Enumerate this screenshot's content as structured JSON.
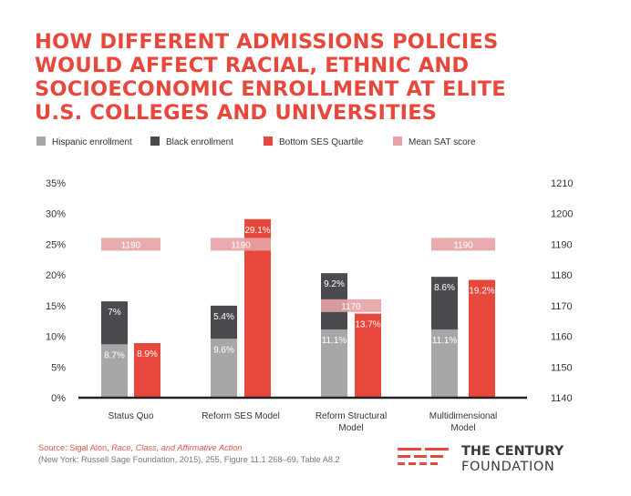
{
  "title_lines": [
    "HOW DIFFERENT ADMISSIONS POLICIES",
    "WOULD AFFECT RACIAL, ETHNIC AND",
    "SOCIOECONOMIC ENROLLMENT AT ELITE",
    "U.S. COLLEGES AND UNIVERSITIES"
  ],
  "colors": {
    "title": "#e8473b",
    "hispanic": "#a7a7a7",
    "black": "#4b4b4f",
    "ses": "#e8473b",
    "sat": "#e7a3a5",
    "axis": "#222222"
  },
  "chart_data": {
    "type": "bar",
    "categories": [
      "Status Quo",
      "Reform SES Model",
      "Reform Structural Model",
      "Multidimensional Model"
    ],
    "category_labels": [
      [
        "Status Quo"
      ],
      [
        "Reform SES Model"
      ],
      [
        "Reform Structural",
        "Model"
      ],
      [
        "Multidimensional",
        "Model"
      ]
    ],
    "legend": [
      "Hispanic enrollment",
      "Black enrollment",
      "Bottom SES Quartile",
      "Mean SAT score"
    ],
    "legend_placement": "top",
    "grid": false,
    "series": [
      {
        "name": "Hispanic enrollment",
        "stack": "A",
        "values": [
          8.7,
          9.6,
          11.1,
          11.1
        ],
        "labels": [
          "8.7%",
          "9.6%",
          "11.1%",
          "11.1%"
        ]
      },
      {
        "name": "Black enrollment",
        "stack": "A",
        "values": [
          7.0,
          5.4,
          9.2,
          8.6
        ],
        "labels": [
          "7%",
          "5.4%",
          "9.2%",
          "8.6%"
        ]
      },
      {
        "name": "Bottom SES Quartile",
        "values": [
          8.9,
          29.1,
          13.7,
          19.2
        ],
        "labels": [
          "8.9%",
          "29.1%",
          "13.7%",
          "19.2%"
        ]
      },
      {
        "name": "Mean SAT score",
        "axis": "right",
        "values": [
          1190,
          1190,
          1170,
          1190
        ],
        "labels": [
          "1190",
          "1190",
          "1170",
          "1190"
        ]
      }
    ],
    "ylim": [
      0,
      35
    ],
    "y_ticks": [
      "0%",
      "5%",
      "10%",
      "15%",
      "20%",
      "25%",
      "30%",
      "35%"
    ],
    "y2lim": [
      1140,
      1210
    ],
    "y2_ticks": [
      "1140",
      "1150",
      "1160",
      "1170",
      "1180",
      "1190",
      "1200",
      "1210"
    ]
  },
  "source": {
    "prefix": "Source: Sigal Alon, ",
    "italic": "Race, Class, and Affirmative Action",
    "line2": "(New York: Russell Sage Foundation, 2015), 255, Figure 11.1 268–69, Table A8.2"
  },
  "logo": {
    "line1": "THE CENTURY",
    "line2": "FOUNDATION"
  }
}
